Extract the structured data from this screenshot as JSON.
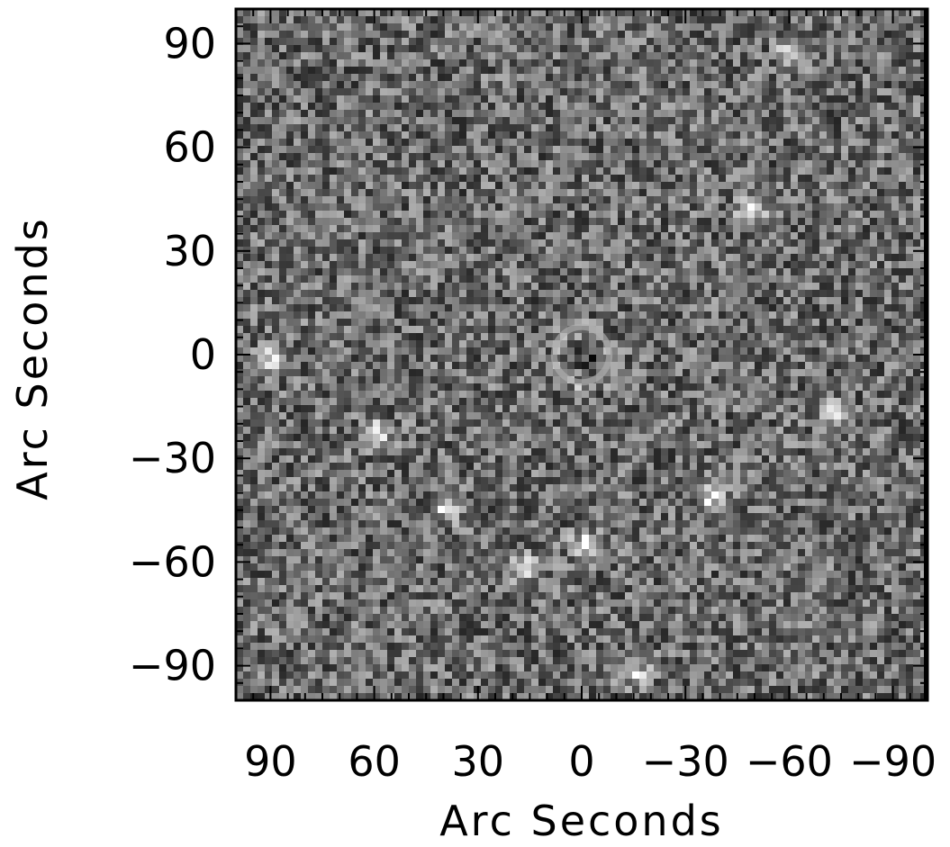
{
  "chart_data": {
    "type": "heatmap",
    "colormap": "grayscale",
    "title": "",
    "xlabel": "Arc Seconds",
    "ylabel": "Arc Seconds",
    "xlim": [
      100,
      -100
    ],
    "ylim": [
      -100,
      100
    ],
    "xticks": [
      90,
      60,
      30,
      0,
      -30,
      -60,
      -90
    ],
    "yticks": [
      90,
      60,
      30,
      0,
      -30,
      -60,
      -90
    ],
    "xtick_labels": [
      "90",
      "60",
      "30",
      "0",
      "−30",
      "−60",
      "−90"
    ],
    "ytick_labels": [
      "90",
      "60",
      "30",
      "0",
      "−30",
      "−60",
      "−90"
    ],
    "features": [
      {
        "type": "ring",
        "x": 0,
        "y": 0,
        "radius": 8
      },
      {
        "type": "bright-spot",
        "x": 0,
        "y": -54
      },
      {
        "type": "bright-spot",
        "x": 18,
        "y": -60
      },
      {
        "type": "bright-spot",
        "x": -72,
        "y": -16
      },
      {
        "type": "bright-spot",
        "x": -60,
        "y": 88
      },
      {
        "type": "bright-spot",
        "x": -48,
        "y": 43
      },
      {
        "type": "bright-spot",
        "x": 90,
        "y": 0
      },
      {
        "type": "bright-spot",
        "x": 60,
        "y": -22
      },
      {
        "type": "bright-spot",
        "x": 40,
        "y": -43
      },
      {
        "type": "bright-spot",
        "x": -37,
        "y": -40
      },
      {
        "type": "bright-spot",
        "x": -14,
        "y": -90
      }
    ],
    "grid": false,
    "legend": "none"
  }
}
